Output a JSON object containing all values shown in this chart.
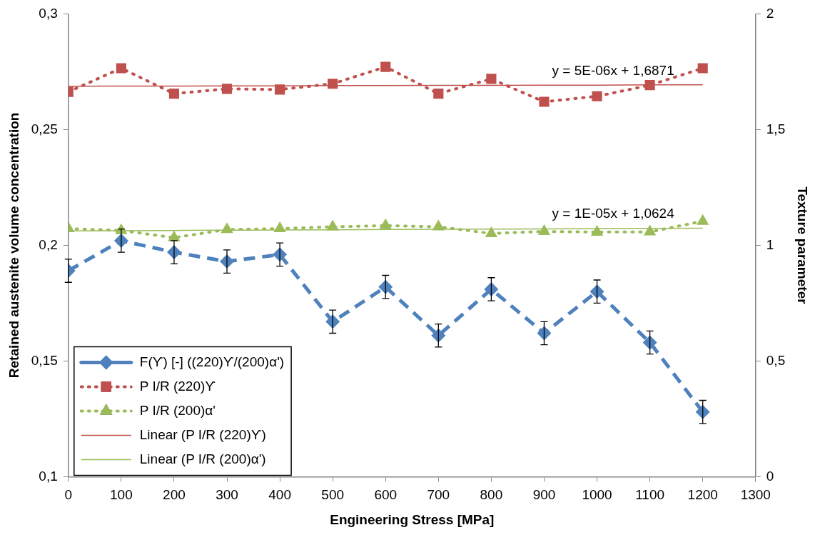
{
  "chart_data": {
    "type": "line",
    "xlabel": "Engineering Stress [MPa]",
    "ylabel": "Retained austenite volume concentration",
    "y2label": "Texture parameter",
    "x": [
      0,
      100,
      200,
      300,
      400,
      500,
      600,
      700,
      800,
      900,
      1000,
      1100,
      1200
    ],
    "series": [
      {
        "name": "F(ϒ) [-] ((220)ϒ/(200)α')",
        "color": "#4f81bd",
        "marker": "diamond",
        "line_style": "dashed",
        "values": [
          0.189,
          0.202,
          0.197,
          0.193,
          0.196,
          0.167,
          0.182,
          0.161,
          0.181,
          0.162,
          0.18,
          0.158,
          0.128
        ],
        "errors": [
          0.005,
          0.005,
          0.005,
          0.005,
          0.005,
          0.005,
          0.005,
          0.005,
          0.005,
          0.005,
          0.005,
          0.005,
          0.005
        ]
      },
      {
        "name": "P I/R (220)ϒ",
        "color": "#c0504d",
        "marker": "square",
        "line_style": "dotted",
        "axis": "y2",
        "values": [
          1.663,
          1.765,
          1.655,
          1.676,
          1.673,
          1.698,
          1.771,
          1.655,
          1.719,
          1.62,
          1.644,
          1.692,
          1.765
        ]
      },
      {
        "name": "P I/R (200)α'",
        "color": "#9bbb59",
        "marker": "triangle",
        "line_style": "dotted",
        "axis": "y2",
        "values": [
          1.072,
          1.064,
          1.033,
          1.068,
          1.072,
          1.08,
          1.085,
          1.08,
          1.051,
          1.06,
          1.057,
          1.058,
          1.104
        ]
      },
      {
        "name": "Linear (P I/R (220)ϒ)",
        "color": "#c0504d",
        "marker": "none",
        "line_style": "solid",
        "axis": "y2",
        "values": [
          1.687,
          1.688,
          1.688,
          1.689,
          1.689,
          1.69,
          1.69,
          1.691,
          1.691,
          1.692,
          1.692,
          1.693,
          1.693
        ]
      },
      {
        "name": "Linear (P I/R (200)α')",
        "color": "#9bbb59",
        "marker": "none",
        "line_style": "solid",
        "axis": "y2",
        "values": [
          1.062,
          1.063,
          1.064,
          1.065,
          1.066,
          1.067,
          1.068,
          1.069,
          1.07,
          1.071,
          1.072,
          1.073,
          1.074
        ]
      }
    ],
    "annotations": [
      "y = 5E-06x + 1,6871",
      "y = 1E-05x + 1,0624"
    ],
    "xlim": [
      0,
      1300
    ],
    "xticks": [
      0,
      100,
      200,
      300,
      400,
      500,
      600,
      700,
      800,
      900,
      1000,
      1100,
      1200,
      1300
    ],
    "ylim": [
      0.1,
      0.3
    ],
    "yticks": [
      {
        "value": 0.1,
        "label": "0,1"
      },
      {
        "value": 0.15,
        "label": "0,15"
      },
      {
        "value": 0.2,
        "label": "0,2"
      },
      {
        "value": 0.25,
        "label": "0,25"
      },
      {
        "value": 0.3,
        "label": "0,3"
      }
    ],
    "y2lim": [
      0,
      2
    ],
    "y2ticks": [
      0,
      {
        "value": 0.5,
        "label": "0,5"
      },
      1,
      {
        "value": 1.5,
        "label": "1,5"
      },
      2
    ],
    "grid": false,
    "legend": "bottom left"
  }
}
